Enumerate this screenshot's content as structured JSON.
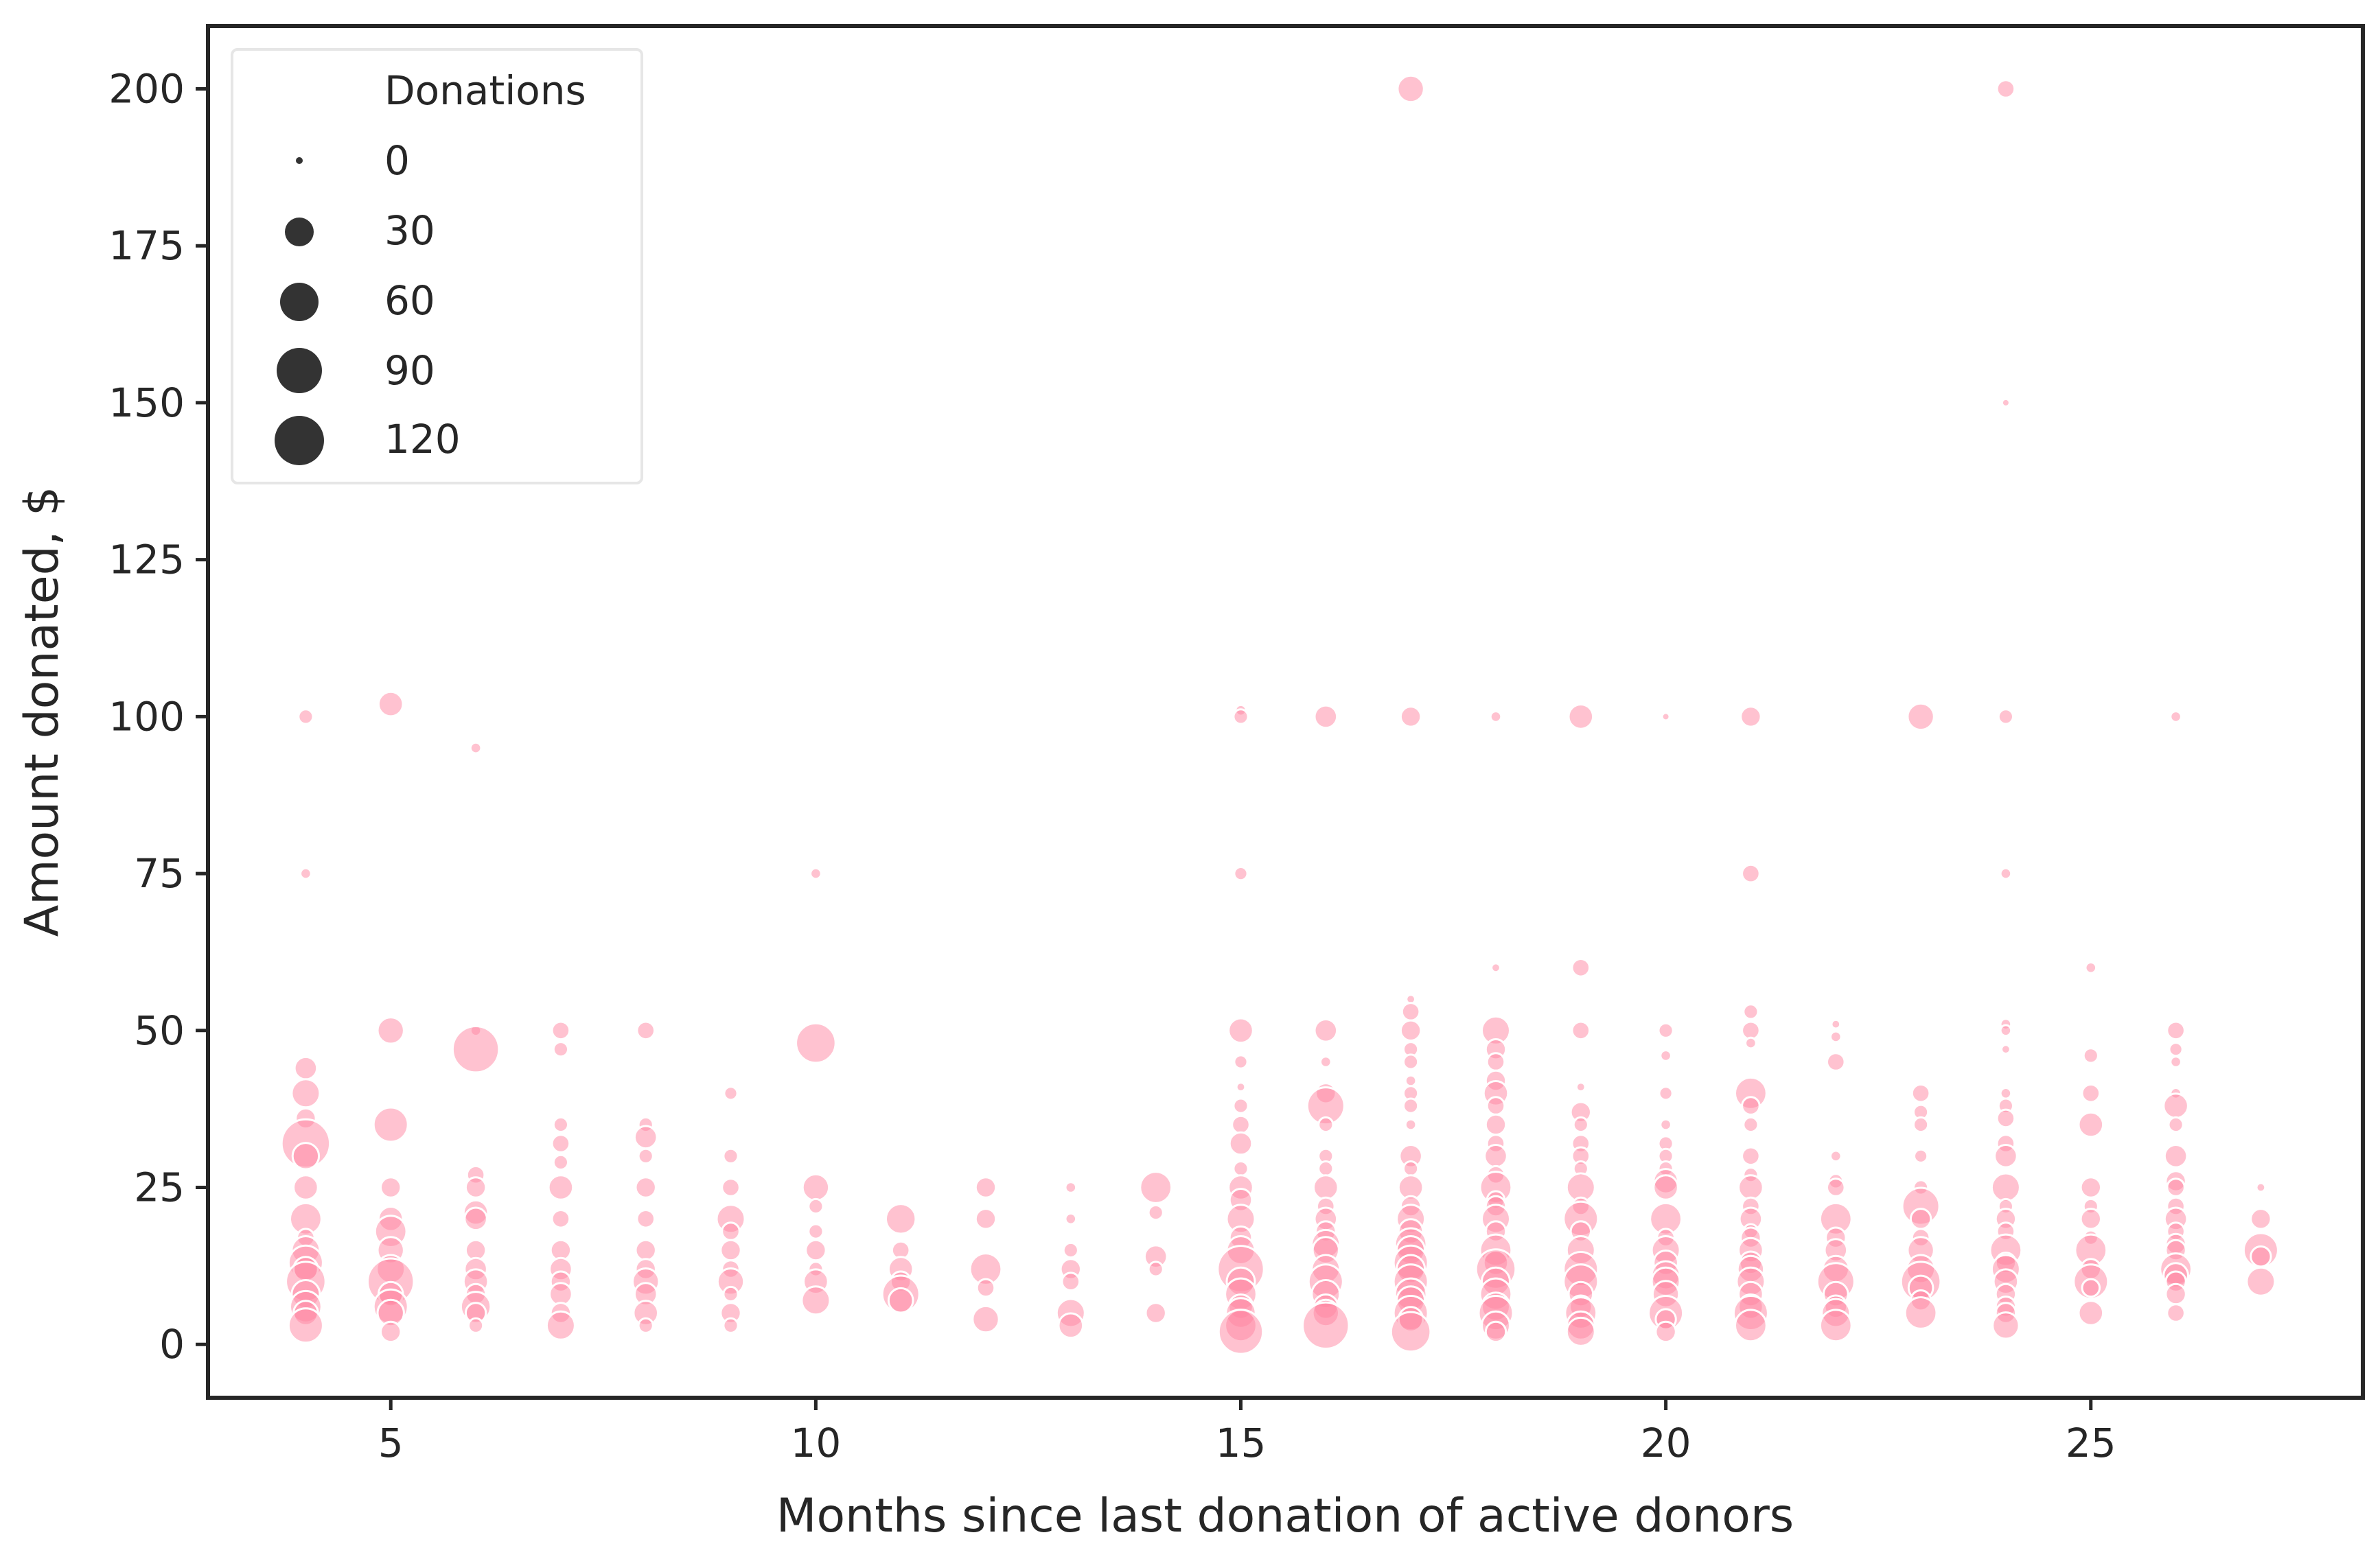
{
  "chart_data": {
    "type": "scatter",
    "title": "",
    "xlabel": "Months since last donation of active donors",
    "ylabel": "Amount donated, $",
    "xlim": [
      2.85,
      28.2
    ],
    "ylim": [
      -8.5,
      210
    ],
    "xticks": [
      5,
      10,
      15,
      20,
      25
    ],
    "yticks": [
      0,
      25,
      50,
      75,
      100,
      125,
      150,
      175,
      200
    ],
    "grid": false,
    "colors": {
      "marker": "#ff85a2",
      "marker_edge": "#ffffff",
      "axis": "#262626",
      "legend_marker": "#333333"
    },
    "legend": {
      "title": "Donations",
      "placement": "top-left",
      "entries": [
        {
          "label": "0",
          "size": 0
        },
        {
          "label": "30",
          "size": 30
        },
        {
          "label": "60",
          "size": 60
        },
        {
          "label": "90",
          "size": 90
        },
        {
          "label": "120",
          "size": 120
        }
      ]
    },
    "size_encoding": "Donations",
    "points": [
      [
        4,
        100,
        10
      ],
      [
        4,
        75,
        5
      ],
      [
        4,
        44,
        25
      ],
      [
        4,
        40,
        40
      ],
      [
        4,
        36,
        20
      ],
      [
        4,
        32,
        120
      ],
      [
        4,
        30,
        35
      ],
      [
        4,
        25,
        30
      ],
      [
        4,
        20,
        50
      ],
      [
        4,
        17,
        15
      ],
      [
        4,
        15,
        40
      ],
      [
        4,
        13,
        60
      ],
      [
        4,
        12,
        30
      ],
      [
        4,
        10,
        80
      ],
      [
        4,
        8,
        40
      ],
      [
        4,
        6,
        50
      ],
      [
        4,
        5,
        30
      ],
      [
        4,
        3,
        60
      ],
      [
        5,
        102,
        30
      ],
      [
        5,
        50,
        35
      ],
      [
        5,
        35,
        60
      ],
      [
        5,
        25,
        20
      ],
      [
        5,
        20,
        30
      ],
      [
        5,
        18,
        50
      ],
      [
        5,
        15,
        35
      ],
      [
        5,
        12,
        40
      ],
      [
        5,
        10,
        110
      ],
      [
        5,
        8,
        30
      ],
      [
        5,
        6,
        60
      ],
      [
        5,
        5,
        35
      ],
      [
        5,
        2,
        20
      ],
      [
        6,
        95,
        5
      ],
      [
        6,
        50,
        5
      ],
      [
        6,
        47,
        110
      ],
      [
        6,
        27,
        15
      ],
      [
        6,
        25,
        20
      ],
      [
        6,
        21,
        30
      ],
      [
        6,
        20,
        25
      ],
      [
        6,
        15,
        20
      ],
      [
        6,
        12,
        25
      ],
      [
        6,
        10,
        30
      ],
      [
        6,
        8,
        20
      ],
      [
        6,
        6,
        45
      ],
      [
        6,
        5,
        20
      ],
      [
        6,
        3,
        10
      ],
      [
        7,
        50,
        15
      ],
      [
        7,
        47,
        10
      ],
      [
        7,
        35,
        10
      ],
      [
        7,
        32,
        15
      ],
      [
        7,
        29,
        10
      ],
      [
        7,
        25,
        30
      ],
      [
        7,
        20,
        15
      ],
      [
        7,
        15,
        20
      ],
      [
        7,
        12,
        25
      ],
      [
        7,
        10,
        20
      ],
      [
        7,
        8,
        25
      ],
      [
        7,
        5,
        20
      ],
      [
        7,
        3,
        40
      ],
      [
        8,
        50,
        15
      ],
      [
        8,
        35,
        10
      ],
      [
        8,
        33,
        25
      ],
      [
        8,
        30,
        10
      ],
      [
        8,
        25,
        20
      ],
      [
        8,
        20,
        15
      ],
      [
        8,
        15,
        20
      ],
      [
        8,
        12,
        20
      ],
      [
        8,
        10,
        35
      ],
      [
        8,
        8,
        25
      ],
      [
        8,
        5,
        30
      ],
      [
        8,
        3,
        10
      ],
      [
        9,
        40,
        8
      ],
      [
        9,
        30,
        10
      ],
      [
        9,
        25,
        15
      ],
      [
        9,
        20,
        40
      ],
      [
        9,
        18,
        15
      ],
      [
        9,
        15,
        20
      ],
      [
        9,
        12,
        15
      ],
      [
        9,
        10,
        35
      ],
      [
        9,
        8,
        10
      ],
      [
        9,
        5,
        20
      ],
      [
        9,
        3,
        10
      ],
      [
        10,
        75,
        5
      ],
      [
        10,
        48,
        80
      ],
      [
        10,
        25,
        35
      ],
      [
        10,
        22,
        10
      ],
      [
        10,
        18,
        10
      ],
      [
        10,
        15,
        20
      ],
      [
        10,
        12,
        10
      ],
      [
        10,
        10,
        30
      ],
      [
        10,
        7,
        40
      ],
      [
        11,
        20,
        45
      ],
      [
        11,
        15,
        15
      ],
      [
        11,
        12,
        30
      ],
      [
        11,
        10,
        20
      ],
      [
        11,
        8,
        70
      ],
      [
        11,
        7,
        30
      ],
      [
        12,
        25,
        20
      ],
      [
        12,
        20,
        20
      ],
      [
        12,
        12,
        50
      ],
      [
        12,
        9,
        15
      ],
      [
        12,
        4,
        35
      ],
      [
        13,
        25,
        5
      ],
      [
        13,
        20,
        5
      ],
      [
        13,
        15,
        10
      ],
      [
        13,
        12,
        20
      ],
      [
        13,
        10,
        15
      ],
      [
        13,
        5,
        40
      ],
      [
        13,
        3,
        30
      ],
      [
        14,
        25,
        50
      ],
      [
        14,
        21,
        10
      ],
      [
        14,
        14,
        25
      ],
      [
        14,
        12,
        10
      ],
      [
        14,
        5,
        20
      ],
      [
        15,
        101,
        5
      ],
      [
        15,
        100,
        10
      ],
      [
        15,
        75,
        8
      ],
      [
        15,
        50,
        30
      ],
      [
        15,
        45,
        8
      ],
      [
        15,
        41,
        3
      ],
      [
        15,
        38,
        10
      ],
      [
        15,
        35,
        15
      ],
      [
        15,
        32,
        25
      ],
      [
        15,
        28,
        10
      ],
      [
        15,
        25,
        30
      ],
      [
        15,
        23,
        25
      ],
      [
        15,
        20,
        40
      ],
      [
        15,
        17,
        25
      ],
      [
        15,
        15,
        40
      ],
      [
        15,
        12,
        110
      ],
      [
        15,
        10,
        40
      ],
      [
        15,
        8,
        50
      ],
      [
        15,
        6,
        30
      ],
      [
        15,
        5,
        45
      ],
      [
        15,
        3,
        50
      ],
      [
        15,
        2,
        100
      ],
      [
        16,
        100,
        25
      ],
      [
        16,
        50,
        25
      ],
      [
        16,
        45,
        5
      ],
      [
        16,
        40,
        20
      ],
      [
        16,
        38,
        70
      ],
      [
        16,
        35,
        10
      ],
      [
        16,
        30,
        10
      ],
      [
        16,
        28,
        10
      ],
      [
        16,
        25,
        30
      ],
      [
        16,
        22,
        15
      ],
      [
        16,
        20,
        25
      ],
      [
        16,
        18,
        20
      ],
      [
        16,
        16,
        40
      ],
      [
        16,
        15,
        35
      ],
      [
        16,
        12,
        40
      ],
      [
        16,
        10,
        60
      ],
      [
        16,
        8,
        40
      ],
      [
        16,
        6,
        30
      ],
      [
        16,
        5,
        35
      ],
      [
        16,
        3,
        110
      ],
      [
        17,
        200,
        35
      ],
      [
        17,
        100,
        20
      ],
      [
        17,
        55,
        3
      ],
      [
        17,
        53,
        15
      ],
      [
        17,
        50,
        20
      ],
      [
        17,
        47,
        10
      ],
      [
        17,
        45,
        10
      ],
      [
        17,
        42,
        5
      ],
      [
        17,
        40,
        10
      ],
      [
        17,
        38,
        10
      ],
      [
        17,
        35,
        5
      ],
      [
        17,
        30,
        25
      ],
      [
        17,
        28,
        10
      ],
      [
        17,
        25,
        30
      ],
      [
        17,
        22,
        20
      ],
      [
        17,
        20,
        40
      ],
      [
        17,
        18,
        30
      ],
      [
        17,
        16,
        50
      ],
      [
        17,
        15,
        40
      ],
      [
        17,
        13,
        60
      ],
      [
        17,
        12,
        40
      ],
      [
        17,
        10,
        60
      ],
      [
        17,
        8,
        50
      ],
      [
        17,
        7,
        40
      ],
      [
        17,
        5,
        60
      ],
      [
        17,
        4,
        30
      ],
      [
        17,
        2,
        80
      ],
      [
        18,
        100,
        5
      ],
      [
        18,
        60,
        3
      ],
      [
        18,
        50,
        40
      ],
      [
        18,
        47,
        20
      ],
      [
        18,
        45,
        15
      ],
      [
        18,
        42,
        20
      ],
      [
        18,
        40,
        30
      ],
      [
        18,
        38,
        15
      ],
      [
        18,
        35,
        20
      ],
      [
        18,
        32,
        15
      ],
      [
        18,
        30,
        25
      ],
      [
        18,
        27,
        15
      ],
      [
        18,
        25,
        50
      ],
      [
        18,
        23,
        15
      ],
      [
        18,
        22,
        20
      ],
      [
        18,
        20,
        40
      ],
      [
        18,
        18,
        20
      ],
      [
        18,
        15,
        50
      ],
      [
        18,
        13,
        30
      ],
      [
        18,
        12,
        80
      ],
      [
        18,
        10,
        40
      ],
      [
        18,
        8,
        50
      ],
      [
        18,
        6,
        40
      ],
      [
        18,
        5,
        60
      ],
      [
        18,
        3,
        40
      ],
      [
        18,
        2,
        20
      ],
      [
        19,
        100,
        30
      ],
      [
        19,
        60,
        15
      ],
      [
        19,
        50,
        15
      ],
      [
        19,
        41,
        3
      ],
      [
        19,
        37,
        20
      ],
      [
        19,
        35,
        10
      ],
      [
        19,
        32,
        15
      ],
      [
        19,
        30,
        15
      ],
      [
        19,
        28,
        10
      ],
      [
        19,
        25,
        40
      ],
      [
        19,
        22,
        15
      ],
      [
        19,
        20,
        60
      ],
      [
        19,
        18,
        20
      ],
      [
        19,
        15,
        40
      ],
      [
        19,
        12,
        60
      ],
      [
        19,
        10,
        60
      ],
      [
        19,
        8,
        30
      ],
      [
        19,
        6,
        25
      ],
      [
        19,
        5,
        50
      ],
      [
        19,
        3,
        40
      ],
      [
        19,
        2,
        40
      ],
      [
        20,
        100,
        2
      ],
      [
        20,
        50,
        10
      ],
      [
        20,
        46,
        5
      ],
      [
        20,
        40,
        8
      ],
      [
        20,
        35,
        5
      ],
      [
        20,
        32,
        10
      ],
      [
        20,
        30,
        10
      ],
      [
        20,
        28,
        10
      ],
      [
        20,
        26,
        30
      ],
      [
        20,
        25,
        30
      ],
      [
        20,
        20,
        50
      ],
      [
        20,
        17,
        15
      ],
      [
        20,
        15,
        40
      ],
      [
        20,
        13,
        30
      ],
      [
        20,
        11,
        40
      ],
      [
        20,
        10,
        40
      ],
      [
        20,
        8,
        35
      ],
      [
        20,
        5,
        60
      ],
      [
        20,
        4,
        20
      ],
      [
        20,
        2,
        20
      ],
      [
        21,
        100,
        20
      ],
      [
        21,
        75,
        15
      ],
      [
        21,
        53,
        10
      ],
      [
        21,
        50,
        15
      ],
      [
        21,
        48,
        5
      ],
      [
        21,
        40,
        50
      ],
      [
        21,
        38,
        15
      ],
      [
        21,
        35,
        10
      ],
      [
        21,
        30,
        15
      ],
      [
        21,
        27,
        10
      ],
      [
        21,
        25,
        30
      ],
      [
        21,
        22,
        15
      ],
      [
        21,
        20,
        25
      ],
      [
        21,
        18,
        10
      ],
      [
        21,
        17,
        20
      ],
      [
        21,
        15,
        30
      ],
      [
        21,
        13,
        25
      ],
      [
        21,
        12,
        35
      ],
      [
        21,
        10,
        40
      ],
      [
        21,
        8,
        30
      ],
      [
        21,
        6,
        30
      ],
      [
        21,
        5,
        60
      ],
      [
        21,
        3,
        50
      ],
      [
        22,
        51,
        3
      ],
      [
        22,
        49,
        5
      ],
      [
        22,
        45,
        15
      ],
      [
        22,
        30,
        5
      ],
      [
        22,
        26,
        10
      ],
      [
        22,
        25,
        15
      ],
      [
        22,
        20,
        50
      ],
      [
        22,
        17,
        20
      ],
      [
        22,
        15,
        25
      ],
      [
        22,
        12,
        35
      ],
      [
        22,
        10,
        70
      ],
      [
        22,
        8,
        30
      ],
      [
        22,
        6,
        25
      ],
      [
        22,
        5,
        40
      ],
      [
        22,
        3,
        50
      ],
      [
        23,
        100,
        35
      ],
      [
        23,
        40,
        15
      ],
      [
        23,
        37,
        10
      ],
      [
        23,
        35,
        10
      ],
      [
        23,
        30,
        8
      ],
      [
        23,
        25,
        10
      ],
      [
        23,
        22,
        70
      ],
      [
        23,
        20,
        20
      ],
      [
        23,
        17,
        15
      ],
      [
        23,
        15,
        35
      ],
      [
        23,
        12,
        40
      ],
      [
        23,
        10,
        80
      ],
      [
        23,
        9,
        30
      ],
      [
        23,
        7,
        20
      ],
      [
        23,
        5,
        50
      ],
      [
        24,
        200,
        15
      ],
      [
        24,
        150,
        2
      ],
      [
        24,
        100,
        10
      ],
      [
        24,
        75,
        5
      ],
      [
        24,
        51,
        5
      ],
      [
        24,
        50,
        5
      ],
      [
        24,
        47,
        3
      ],
      [
        24,
        40,
        5
      ],
      [
        24,
        38,
        10
      ],
      [
        24,
        36,
        15
      ],
      [
        24,
        32,
        15
      ],
      [
        24,
        30,
        25
      ],
      [
        24,
        25,
        40
      ],
      [
        24,
        22,
        10
      ],
      [
        24,
        20,
        20
      ],
      [
        24,
        18,
        15
      ],
      [
        24,
        15,
        50
      ],
      [
        24,
        13,
        20
      ],
      [
        24,
        12,
        40
      ],
      [
        24,
        10,
        30
      ],
      [
        24,
        8,
        20
      ],
      [
        24,
        6,
        20
      ],
      [
        24,
        5,
        20
      ],
      [
        24,
        3,
        35
      ],
      [
        25,
        60,
        5
      ],
      [
        25,
        46,
        10
      ],
      [
        25,
        40,
        15
      ],
      [
        25,
        35,
        30
      ],
      [
        25,
        25,
        20
      ],
      [
        25,
        22,
        10
      ],
      [
        25,
        20,
        20
      ],
      [
        25,
        17,
        10
      ],
      [
        25,
        15,
        50
      ],
      [
        25,
        12,
        20
      ],
      [
        25,
        10,
        60
      ],
      [
        25,
        9,
        15
      ],
      [
        25,
        5,
        30
      ],
      [
        26,
        100,
        5
      ],
      [
        26,
        50,
        15
      ],
      [
        26,
        47,
        8
      ],
      [
        26,
        45,
        5
      ],
      [
        26,
        40,
        5
      ],
      [
        26,
        38,
        30
      ],
      [
        26,
        35,
        10
      ],
      [
        26,
        30,
        25
      ],
      [
        26,
        26,
        20
      ],
      [
        26,
        25,
        15
      ],
      [
        26,
        22,
        15
      ],
      [
        26,
        20,
        25
      ],
      [
        26,
        18,
        15
      ],
      [
        26,
        16,
        20
      ],
      [
        26,
        15,
        20
      ],
      [
        26,
        12,
        50
      ],
      [
        26,
        11,
        30
      ],
      [
        26,
        10,
        20
      ],
      [
        26,
        8,
        20
      ],
      [
        26,
        5,
        15
      ],
      [
        27,
        25,
        3
      ],
      [
        27,
        20,
        20
      ],
      [
        27,
        15,
        60
      ],
      [
        27,
        14,
        20
      ],
      [
        27,
        10,
        40
      ]
    ]
  }
}
